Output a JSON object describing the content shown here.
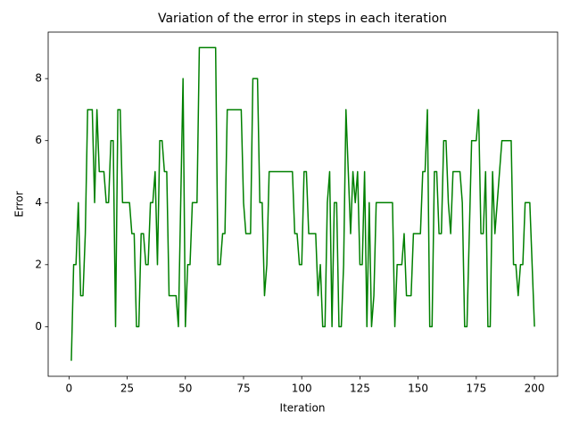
{
  "chart_data": {
    "type": "line",
    "title": "Variation of the error in steps in each iteration",
    "xlabel": "Iteration",
    "ylabel": "Error",
    "x": [
      1,
      2,
      3,
      4,
      5,
      6,
      7,
      8,
      9,
      10,
      11,
      12,
      13,
      14,
      15,
      16,
      17,
      18,
      19,
      20,
      21,
      22,
      23,
      24,
      25,
      26,
      27,
      28,
      29,
      30,
      31,
      32,
      33,
      34,
      35,
      36,
      37,
      38,
      39,
      40,
      41,
      42,
      43,
      44,
      45,
      46,
      47,
      48,
      49,
      50,
      51,
      52,
      53,
      54,
      55,
      56,
      57,
      58,
      59,
      60,
      61,
      62,
      63,
      64,
      65,
      66,
      67,
      68,
      69,
      70,
      71,
      72,
      73,
      74,
      75,
      76,
      77,
      78,
      79,
      80,
      81,
      82,
      83,
      84,
      85,
      86,
      87,
      88,
      89,
      90,
      91,
      92,
      93,
      94,
      95,
      96,
      97,
      98,
      99,
      100,
      101,
      102,
      103,
      104,
      105,
      106,
      107,
      108,
      109,
      110,
      111,
      112,
      113,
      114,
      115,
      116,
      117,
      118,
      119,
      120,
      121,
      122,
      123,
      124,
      125,
      126,
      127,
      128,
      129,
      130,
      131,
      132,
      133,
      134,
      135,
      136,
      137,
      138,
      139,
      140,
      141,
      142,
      143,
      144,
      145,
      146,
      147,
      148,
      149,
      150,
      151,
      152,
      153,
      154,
      155,
      156,
      157,
      158,
      159,
      160,
      161,
      162,
      163,
      164,
      165,
      166,
      167,
      168,
      169,
      170,
      171,
      172,
      173,
      174,
      175,
      176,
      177,
      178,
      179,
      180,
      181,
      182,
      183,
      184,
      185,
      186,
      187,
      188,
      189,
      190,
      191,
      192,
      193,
      194,
      195,
      196,
      197,
      198,
      199,
      200
    ],
    "values": [
      -1.1,
      2,
      2,
      4,
      1,
      1,
      3,
      7,
      7,
      7,
      4,
      7,
      5,
      5,
      5,
      4,
      4,
      6,
      6,
      0,
      7,
      7,
      4,
      4,
      4,
      4,
      3,
      3,
      0,
      0,
      3,
      3,
      2,
      2,
      4,
      4,
      5,
      2,
      6,
      6,
      5,
      5,
      1,
      1,
      1,
      1,
      0,
      4,
      8,
      0,
      2,
      2,
      4,
      4,
      4,
      9,
      9,
      9,
      9,
      9,
      9,
      9,
      9,
      2,
      2,
      3,
      3,
      7,
      7,
      7,
      7,
      7,
      7,
      7,
      4,
      3,
      3,
      3,
      8,
      8,
      8,
      4,
      4,
      1,
      2,
      5,
      5,
      5,
      5,
      5,
      5,
      5,
      5,
      5,
      5,
      5,
      3,
      3,
      2,
      2,
      5,
      5,
      3,
      3,
      3,
      3,
      1,
      2,
      0,
      0,
      4,
      5,
      0,
      4,
      4,
      0,
      0,
      2,
      7,
      5,
      3,
      5,
      4,
      5,
      2,
      2,
      5,
      0,
      4,
      0,
      1,
      4,
      4,
      4,
      4,
      4,
      4,
      4,
      4,
      0,
      2,
      2,
      2,
      3,
      1,
      1,
      1,
      3,
      3,
      3,
      3,
      5,
      5,
      7,
      0,
      0,
      5,
      5,
      3,
      3,
      6,
      6,
      4,
      3,
      5,
      5,
      5,
      5,
      4,
      0,
      0,
      3,
      6,
      6,
      6,
      7,
      3,
      3,
      5,
      0,
      0,
      5,
      3,
      4,
      5,
      6,
      6,
      6,
      6,
      6,
      2,
      2,
      1,
      2,
      2,
      4,
      4,
      4,
      2,
      0
    ],
    "color": "#008000",
    "xlim": [
      -8.95,
      209.95
    ],
    "xticks": [
      0,
      25,
      50,
      75,
      100,
      125,
      150,
      175,
      200
    ],
    "ylim": [
      -1.6,
      9.5
    ],
    "yticks": [
      0,
      2,
      4,
      6,
      8
    ]
  }
}
